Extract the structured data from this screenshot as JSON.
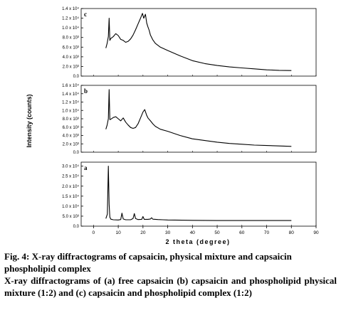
{
  "chart_data": {
    "type": "line",
    "xlabel": "2 theta (degree)",
    "ylabel": "Intensity (counts)",
    "xlim": [
      -5,
      90
    ],
    "xticks": [
      0,
      10,
      20,
      30,
      40,
      50,
      60,
      70,
      80,
      90
    ],
    "panels": [
      {
        "letter": "c",
        "ylim": [
          0,
          14000
        ],
        "yticks": [
          {
            "value": 0,
            "label": "0.0"
          },
          {
            "value": 2000,
            "label": "2.0 x 10³"
          },
          {
            "value": 4000,
            "label": "4.0 x 10³"
          },
          {
            "value": 6000,
            "label": "6.0 x 10³"
          },
          {
            "value": 8000,
            "label": "8.0 x 10³"
          },
          {
            "value": 10000,
            "label": "1.0 x 10⁴"
          },
          {
            "value": 12000,
            "label": "1.2 x 10⁴"
          },
          {
            "value": 14000,
            "label": "1.4 x 10⁴"
          }
        ],
        "x": [
          5,
          5.5,
          6,
          6.3,
          6.6,
          7,
          8,
          9,
          10,
          11,
          12,
          13,
          14,
          15,
          16,
          17,
          18,
          19,
          19.8,
          20.3,
          21,
          21.5,
          22,
          22.5,
          23,
          24,
          25,
          27,
          30,
          35,
          40,
          45,
          50,
          55,
          60,
          65,
          70,
          75,
          80
        ],
        "y": [
          5800,
          6800,
          8200,
          12000,
          7400,
          7800,
          8200,
          8800,
          8400,
          7600,
          7400,
          7000,
          7200,
          7700,
          8500,
          9600,
          10800,
          12000,
          13000,
          12000,
          12800,
          11000,
          10200,
          9500,
          8500,
          7500,
          6800,
          6000,
          5300,
          4200,
          3200,
          2600,
          2200,
          1900,
          1700,
          1500,
          1300,
          1200,
          1150
        ]
      },
      {
        "letter": "b",
        "ylim": [
          0,
          16000
        ],
        "yticks": [
          {
            "value": 0,
            "label": "0.0"
          },
          {
            "value": 2000,
            "label": "2.0 x 10³"
          },
          {
            "value": 4000,
            "label": "4.0 x 10³"
          },
          {
            "value": 6000,
            "label": "6.0 x 10³"
          },
          {
            "value": 8000,
            "label": "8.0 x 10³"
          },
          {
            "value": 10000,
            "label": "1.0 x 10⁴"
          },
          {
            "value": 12000,
            "label": "1.2 x 10⁴"
          },
          {
            "value": 14000,
            "label": "1.4 x 10⁴"
          },
          {
            "value": 16000,
            "label": "1.6 x 10⁴"
          }
        ],
        "x": [
          5,
          5.5,
          6,
          6.3,
          6.6,
          7,
          8,
          9,
          10,
          11,
          12,
          13,
          14,
          15,
          16,
          17,
          18,
          19,
          20,
          20.7,
          21.5,
          22,
          23,
          24,
          25,
          27,
          30,
          35,
          40,
          45,
          50,
          55,
          60,
          65,
          70,
          75,
          80
        ],
        "y": [
          5500,
          6500,
          8000,
          15000,
          7800,
          7900,
          8300,
          8500,
          8000,
          7500,
          8200,
          7200,
          6500,
          5900,
          5700,
          5900,
          6800,
          8200,
          9600,
          10200,
          8800,
          8200,
          7500,
          6800,
          6200,
          5500,
          5000,
          4000,
          3200,
          2800,
          2400,
          2100,
          1900,
          1700,
          1600,
          1500,
          1400
        ]
      },
      {
        "letter": "a",
        "ylim": [
          0,
          32000
        ],
        "yticks": [
          {
            "value": 0,
            "label": "0.0"
          },
          {
            "value": 5000,
            "label": "5.0 x 10³"
          },
          {
            "value": 10000,
            "label": "1.0 x 10⁴"
          },
          {
            "value": 15000,
            "label": "1.5 x 10⁴"
          },
          {
            "value": 20000,
            "label": "2.0 x 10⁴"
          },
          {
            "value": 25000,
            "label": "2.5 x 10⁴"
          },
          {
            "value": 30000,
            "label": "3.0 x 10⁴"
          }
        ],
        "x": [
          5,
          5.6,
          6,
          6.3,
          6.6,
          7,
          8,
          10,
          11,
          11.5,
          12,
          13,
          15,
          16,
          16.5,
          17,
          18,
          19.5,
          20,
          20.5,
          22,
          23,
          23.5,
          24,
          26,
          28,
          30,
          40,
          50,
          60,
          70,
          80
        ],
        "y": [
          3800,
          6000,
          30000,
          11000,
          4500,
          3500,
          3200,
          3100,
          3300,
          6500,
          3600,
          3200,
          3200,
          3800,
          6300,
          3800,
          3300,
          3400,
          4800,
          3400,
          3400,
          3600,
          4200,
          3500,
          3300,
          3200,
          3100,
          2900,
          2800,
          2800,
          2800,
          2800
        ]
      }
    ]
  },
  "caption": {
    "title": "Fig. 4: X-ray diffractograms of capsaicin, physical mixture and capsaicin phospholipid complex",
    "body": "X-ray diffractograms of (a) free capsaicin (b) capsaicin and phospholipid physical mixture (1:2) and (c) capsaicin and phospholipid complex (1:2)"
  }
}
